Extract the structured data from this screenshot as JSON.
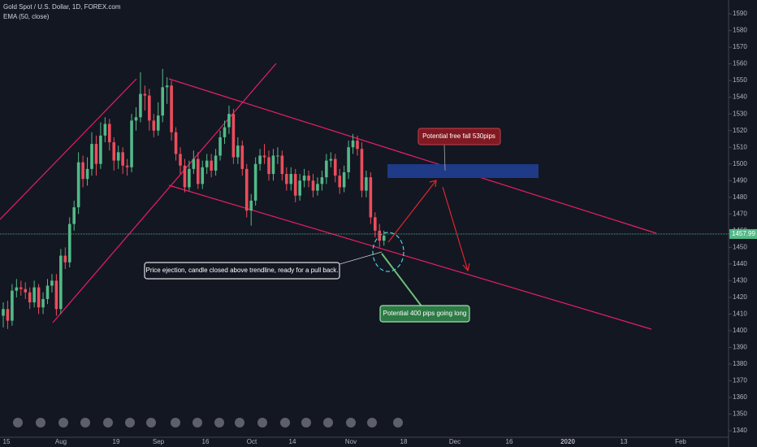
{
  "chart_data": {
    "type": "candlestick",
    "title": "Gold Spot / U.S. Dollar, 1D, FOREX.com",
    "indicator": "EMA (50, close)",
    "up_color": "#53b987",
    "down_color": "#eb4d5c",
    "open": [
      1409,
      1413,
      1406,
      1424,
      1426,
      1425,
      1423,
      1417,
      1426,
      1414,
      1419,
      1427,
      1430,
      1413,
      1445,
      1441,
      1464,
      1474,
      1501,
      1491,
      1497,
      1512,
      1500,
      1517,
      1524,
      1513,
      1502,
      1507,
      1499,
      1498,
      1526,
      1528,
      1542,
      1541,
      1526,
      1520,
      1529,
      1546,
      1547,
      1519,
      1506,
      1499,
      1486,
      1497,
      1503,
      1488,
      1498,
      1502,
      1496,
      1505,
      1516,
      1522,
      1530,
      1504,
      1511,
      1497,
      1472,
      1478,
      1500,
      1505,
      1504,
      1494,
      1505,
      1505,
      1494,
      1488,
      1494,
      1481,
      1490,
      1493,
      1490,
      1484,
      1488,
      1492,
      1502,
      1503,
      1493,
      1486,
      1495,
      1510,
      1514,
      1509,
      1484,
      1492,
      1468,
      1460,
      1454
    ],
    "high": [
      1417,
      1418,
      1428,
      1431,
      1430,
      1429,
      1426,
      1430,
      1428,
      1423,
      1431,
      1434,
      1434,
      1449,
      1450,
      1468,
      1478,
      1507,
      1505,
      1504,
      1519,
      1517,
      1525,
      1528,
      1527,
      1516,
      1511,
      1510,
      1503,
      1530,
      1534,
      1555,
      1547,
      1545,
      1530,
      1537,
      1557,
      1552,
      1550,
      1522,
      1510,
      1503,
      1502,
      1508,
      1507,
      1502,
      1506,
      1506,
      1509,
      1520,
      1526,
      1535,
      1533,
      1516,
      1514,
      1500,
      1482,
      1504,
      1509,
      1512,
      1508,
      1509,
      1510,
      1508,
      1498,
      1498,
      1497,
      1494,
      1497,
      1496,
      1494,
      1492,
      1496,
      1506,
      1507,
      1506,
      1497,
      1499,
      1514,
      1518,
      1517,
      1513,
      1496,
      1495,
      1471,
      1464,
      1460
    ],
    "low": [
      1402,
      1401,
      1403,
      1420,
      1421,
      1419,
      1413,
      1414,
      1410,
      1410,
      1416,
      1423,
      1409,
      1410,
      1437,
      1438,
      1460,
      1470,
      1486,
      1487,
      1493,
      1493,
      1497,
      1513,
      1508,
      1496,
      1497,
      1494,
      1493,
      1495,
      1520,
      1525,
      1532,
      1520,
      1516,
      1517,
      1525,
      1536,
      1514,
      1502,
      1494,
      1483,
      1484,
      1494,
      1485,
      1485,
      1494,
      1492,
      1493,
      1502,
      1512,
      1518,
      1500,
      1500,
      1493,
      1468,
      1463,
      1475,
      1496,
      1500,
      1490,
      1490,
      1500,
      1490,
      1484,
      1484,
      1477,
      1478,
      1486,
      1486,
      1480,
      1481,
      1484,
      1488,
      1498,
      1489,
      1482,
      1483,
      1491,
      1506,
      1505,
      1480,
      1480,
      1464,
      1456,
      1450,
      1451
    ],
    "close": [
      1413,
      1406,
      1424,
      1426,
      1425,
      1423,
      1417,
      1426,
      1414,
      1419,
      1427,
      1430,
      1413,
      1445,
      1441,
      1464,
      1474,
      1501,
      1491,
      1497,
      1512,
      1500,
      1517,
      1524,
      1513,
      1502,
      1507,
      1499,
      1498,
      1526,
      1528,
      1542,
      1541,
      1526,
      1520,
      1529,
      1546,
      1547,
      1519,
      1506,
      1499,
      1486,
      1497,
      1503,
      1488,
      1498,
      1502,
      1496,
      1505,
      1516,
      1522,
      1530,
      1504,
      1511,
      1497,
      1472,
      1478,
      1500,
      1505,
      1504,
      1494,
      1505,
      1505,
      1494,
      1488,
      1494,
      1481,
      1490,
      1493,
      1490,
      1484,
      1488,
      1492,
      1502,
      1503,
      1493,
      1486,
      1495,
      1510,
      1514,
      1509,
      1484,
      1492,
      1468,
      1460,
      1454,
      1457
    ],
    "ylim": [
      1337.1,
      1598.3
    ],
    "yticks": [
      1340,
      1350,
      1360,
      1370,
      1380,
      1390,
      1400,
      1410,
      1420,
      1430,
      1440,
      1450,
      1460,
      1470,
      1480,
      1490,
      1500,
      1510,
      1520,
      1530,
      1540,
      1550,
      1560,
      1570,
      1580,
      1590
    ],
    "last_price": 1457.99,
    "xtick_labels": [
      "15",
      "Aug",
      "19",
      "Sep",
      "16",
      "Oct",
      "14",
      "Nov",
      "18",
      "Dec",
      "16",
      "2020",
      "13",
      "Feb"
    ],
    "annotations": [
      "Potential free fall 530pips",
      "Price ejection, candle closed above trendline, ready for a pull back.",
      "Potential 400 pips going long"
    ]
  }
}
